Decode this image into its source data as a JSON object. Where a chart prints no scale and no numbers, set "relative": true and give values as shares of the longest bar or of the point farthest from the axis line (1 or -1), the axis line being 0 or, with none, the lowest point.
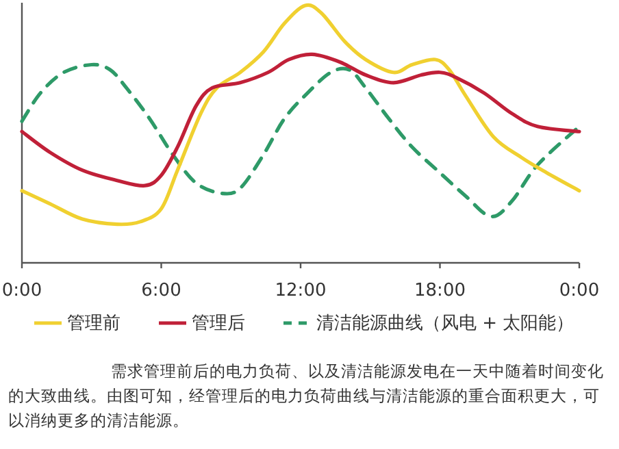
{
  "chart_data": {
    "type": "line",
    "relative": true,
    "xlim": [
      0,
      24
    ],
    "xticks": [
      {
        "value": 0,
        "label": "0:00"
      },
      {
        "value": 6,
        "label": "6:00"
      },
      {
        "value": 12,
        "label": "12:00"
      },
      {
        "value": 18,
        "label": "18:00"
      },
      {
        "value": 24,
        "label": "0:00"
      }
    ],
    "legend": "bottom",
    "marker": "none",
    "series": [
      {
        "name": "管理前",
        "color": "#f0d030",
        "line_style": "solid",
        "x": [
          0,
          1.2,
          2.6,
          4.1,
          5.1,
          6,
          6.7,
          7.7,
          8.4,
          9.4,
          10.4,
          11.3,
          12.2,
          12.9,
          13.9,
          14.8,
          16,
          16.8,
          17.8,
          18.4,
          19.1,
          20.3,
          21.5,
          22.6,
          24
        ],
        "values": [
          0.28,
          0.23,
          0.17,
          0.15,
          0.16,
          0.21,
          0.36,
          0.58,
          0.68,
          0.74,
          0.82,
          0.93,
          1,
          0.97,
          0.86,
          0.79,
          0.74,
          0.77,
          0.79,
          0.75,
          0.65,
          0.49,
          0.41,
          0.35,
          0.28
        ]
      },
      {
        "name": "管理后",
        "color": "#c02038",
        "line_style": "solid",
        "x": [
          0,
          1.2,
          2.6,
          4.1,
          5.3,
          6,
          6.7,
          7.5,
          8.2,
          9.4,
          10.6,
          11.5,
          12.5,
          13.7,
          14.8,
          16,
          17.2,
          18,
          18.7,
          19.9,
          21.1,
          22.2,
          24
        ],
        "values": [
          0.51,
          0.43,
          0.36,
          0.32,
          0.3,
          0.34,
          0.45,
          0.61,
          0.68,
          0.7,
          0.74,
          0.79,
          0.81,
          0.78,
          0.73,
          0.7,
          0.73,
          0.74,
          0.72,
          0.66,
          0.58,
          0.53,
          0.51
        ]
      },
      {
        "name": "清洁能源曲线（风电 + 太阳能）",
        "color": "#2e9a68",
        "line_style": "dashed",
        "x": [
          0,
          0.8,
          1.8,
          3,
          3.8,
          4.5,
          5.5,
          6.5,
          7.5,
          8.6,
          9.4,
          10.4,
          11.3,
          12.3,
          13.3,
          14.1,
          14.8,
          15.8,
          16.8,
          18,
          19.1,
          20.2,
          21.1,
          22.2,
          24
        ],
        "values": [
          0.55,
          0.66,
          0.74,
          0.77,
          0.75,
          0.68,
          0.56,
          0.42,
          0.31,
          0.27,
          0.29,
          0.42,
          0.56,
          0.66,
          0.74,
          0.75,
          0.68,
          0.56,
          0.45,
          0.35,
          0.26,
          0.18,
          0.24,
          0.38,
          0.53
        ]
      }
    ],
    "annotations": [
      "需求管理前后的电力负荷、以及清洁能源发电在一天中随着时间变化的大致曲线。由图可知，经管理后的电力负荷曲线与清洁能源的重合面积更大，可以消纳更多的清洁能源。"
    ]
  }
}
